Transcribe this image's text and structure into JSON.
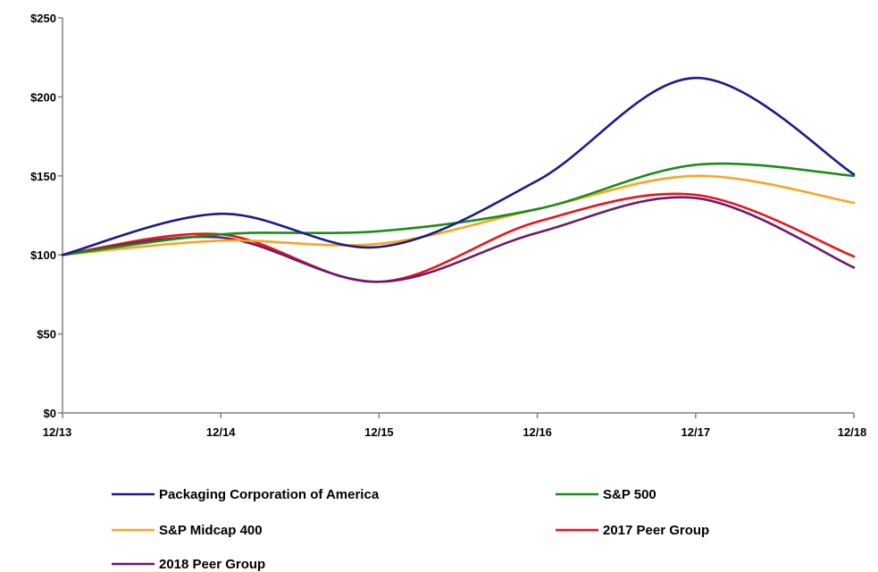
{
  "chart_data": {
    "type": "line",
    "x": [
      "12/13",
      "12/14",
      "12/15",
      "12/16",
      "12/17",
      "12/18"
    ],
    "y_ticks": [
      "$0",
      "$50",
      "$100",
      "$150",
      "$200",
      "$250"
    ],
    "y_tick_values": [
      0,
      50,
      100,
      150,
      200,
      250
    ],
    "ylim": [
      0,
      250
    ],
    "grid": false,
    "legend_position": "bottom",
    "series": [
      {
        "name": "Packaging Corporation of America",
        "color": "#1a1a8c",
        "values": [
          100,
          126,
          105,
          147,
          212,
          151
        ]
      },
      {
        "name": "S&P 500",
        "color": "#1a8c1a",
        "values": [
          100,
          113,
          115,
          129,
          157,
          150
        ]
      },
      {
        "name": "S&P Midcap 400",
        "color": "#f5a623",
        "values": [
          100,
          109,
          107,
          129,
          150,
          133
        ]
      },
      {
        "name": "2017 Peer Group",
        "color": "#e8161b",
        "values": [
          100,
          113,
          83,
          121,
          138,
          99
        ]
      },
      {
        "name": "2018 Peer Group",
        "color": "#6a1a6e",
        "values": [
          100,
          111,
          83,
          114,
          136,
          92
        ]
      }
    ]
  }
}
